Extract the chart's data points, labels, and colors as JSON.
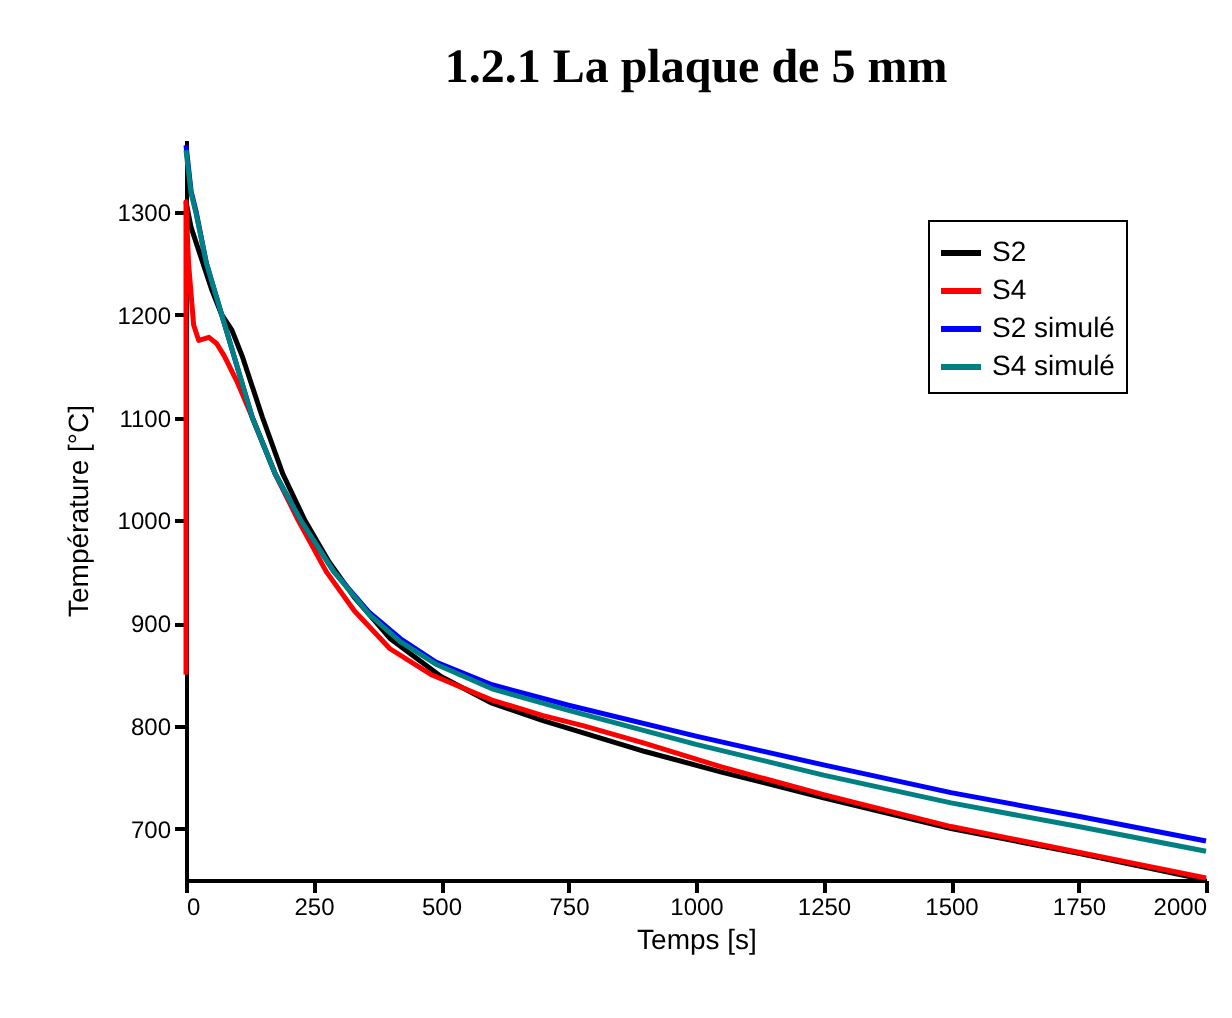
{
  "chart_data": {
    "type": "line",
    "title": "1.2.1     La plaque de 5 mm",
    "xlabel": "Temps [s]",
    "ylabel": "Température [°C]",
    "xlim": [
      0,
      2000
    ],
    "ylim": [
      650,
      1370
    ],
    "xticks": [
      0,
      250,
      500,
      750,
      1000,
      1250,
      1500,
      1750,
      2000
    ],
    "yticks": [
      700,
      800,
      900,
      1000,
      1100,
      1200,
      1300
    ],
    "legend": "top right",
    "grid": false,
    "line_style": "solid",
    "marker": "none",
    "series": [
      {
        "name": "S2",
        "color": "#000000",
        "x": [
          0,
          10,
          30,
          50,
          70,
          90,
          110,
          150,
          190,
          233,
          280,
          330,
          400,
          500,
          600,
          700,
          800,
          900,
          1050,
          1250,
          1500,
          1750,
          2000
        ],
        "values": [
          1310,
          1285,
          1255,
          1225,
          1200,
          1185,
          1160,
          1100,
          1045,
          1000,
          960,
          925,
          885,
          848,
          822,
          805,
          790,
          775,
          755,
          730,
          700,
          676,
          650
        ]
      },
      {
        "name": "S4",
        "color": "#ff0000",
        "x": [
          0,
          0,
          5,
          15,
          25,
          45,
          60,
          75,
          100,
          130,
          175,
          220,
          275,
          330,
          400,
          480,
          600,
          700,
          780,
          900,
          1050,
          1250,
          1500,
          1750,
          2000
        ],
        "values": [
          850,
          1310,
          1250,
          1190,
          1175,
          1178,
          1172,
          1160,
          1135,
          1100,
          1045,
          1000,
          950,
          912,
          875,
          850,
          825,
          810,
          800,
          783,
          760,
          733,
          702,
          677,
          652
        ]
      },
      {
        "name": "S2 simulé",
        "color": "#0000ff",
        "x": [
          0,
          10,
          20,
          40,
          70,
          100,
          130,
          175,
          225,
          290,
          360,
          420,
          490,
          600,
          750,
          1000,
          1250,
          1500,
          1750,
          2000
        ],
        "values": [
          1365,
          1320,
          1300,
          1250,
          1200,
          1150,
          1100,
          1045,
          1000,
          950,
          910,
          885,
          862,
          840,
          820,
          790,
          762,
          735,
          712,
          688
        ]
      },
      {
        "name": "S4 simulé",
        "color": "#008080",
        "x": [
          0,
          10,
          20,
          40,
          70,
          100,
          130,
          175,
          225,
          290,
          360,
          420,
          490,
          600,
          750,
          1000,
          1250,
          1500,
          1750,
          2000
        ],
        "values": [
          1360,
          1318,
          1298,
          1250,
          1200,
          1150,
          1100,
          1045,
          1000,
          950,
          908,
          882,
          860,
          836,
          815,
          782,
          752,
          725,
          702,
          678
        ]
      }
    ]
  }
}
